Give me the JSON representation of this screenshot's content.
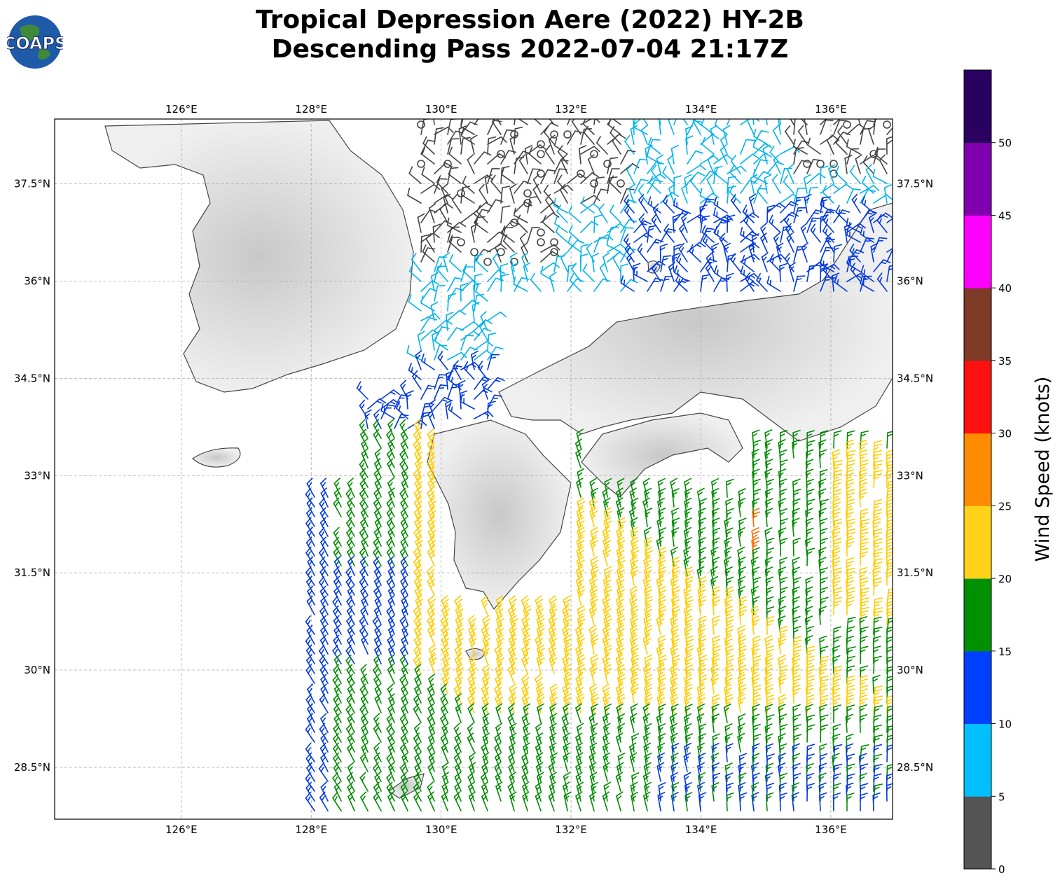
{
  "title_line1": "Tropical Depression Aere (2022) HY-2B",
  "title_line2": "Descending Pass 2022-07-04 21:17Z",
  "logo_text": "COAPS",
  "map": {
    "lon_range": [
      124.05,
      136.95
    ],
    "lat_range": [
      27.7,
      38.5
    ],
    "lon_ticks": [
      "126°E",
      "128°E",
      "130°E",
      "132°E",
      "134°E",
      "136°E"
    ],
    "lat_ticks": [
      "37.5°N",
      "36°N",
      "34.5°N",
      "33°N",
      "31.5°N",
      "30°N",
      "28.5°N"
    ],
    "grid": "dashed"
  },
  "colorbar": {
    "label": "Wind Speed (knots)",
    "ticks": [
      "0",
      "5",
      "10",
      "15",
      "20",
      "25",
      "30",
      "35",
      "40",
      "45",
      "50"
    ],
    "colors": [
      "#555555",
      "#00bfff",
      "#0040ff",
      "#009000",
      "#ffd21a",
      "#ff8c00",
      "#ff1010",
      "#803a28",
      "#ff00ff",
      "#8000b0",
      "#2a0060"
    ]
  },
  "wind_colors": {
    "calm": "#444444",
    "light": "#00b4ec",
    "moderate": "#0038e0",
    "fresh": "#008c00",
    "strong": "#ffcc00",
    "gale": "#ff6a00"
  }
}
